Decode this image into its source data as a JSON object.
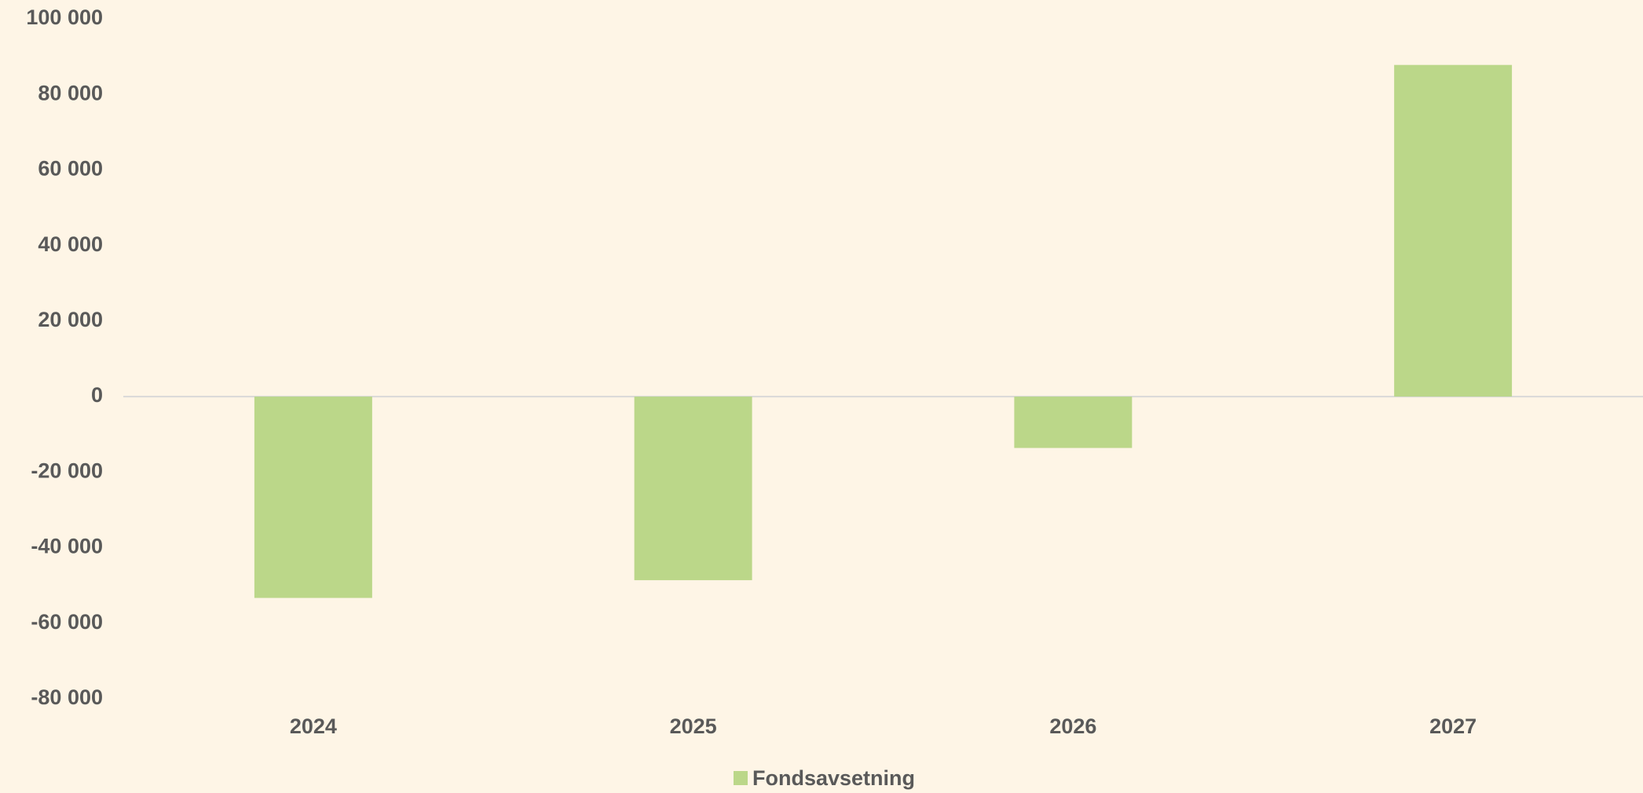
{
  "chart_data": {
    "type": "bar",
    "categories": [
      "2024",
      "2025",
      "2026",
      "2027"
    ],
    "series": [
      {
        "name": "Fondsavsetning",
        "color": "#bbd789",
        "values": [
          -53300,
          -48600,
          -13600,
          87800
        ]
      }
    ],
    "ylim": [
      -80000,
      100000
    ],
    "yticks": [
      {
        "value": -80000,
        "label": "-80 000"
      },
      {
        "value": -60000,
        "label": "-60 000"
      },
      {
        "value": -40000,
        "label": "-40 000"
      },
      {
        "value": -20000,
        "label": "-20 000"
      },
      0,
      {
        "value": 20000,
        "label": "20 000"
      },
      {
        "value": 40000,
        "label": "40 000"
      },
      {
        "value": 60000,
        "label": "60 000"
      },
      {
        "value": 80000,
        "label": "80 000"
      },
      {
        "value": 100000,
        "label": "100 000"
      }
    ],
    "grid": false,
    "legend": "bottom"
  }
}
